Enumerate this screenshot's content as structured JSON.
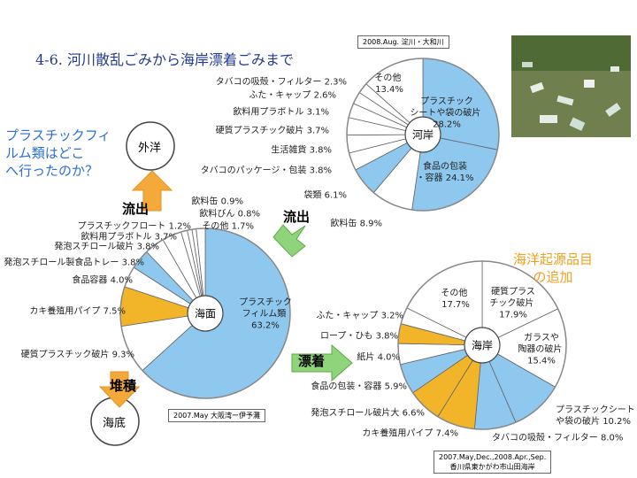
{
  "title": "4-6. 河川散乱ごみから海岸漂着ごみまで",
  "question": "プラスチックフィ\nルム類はどこ\nへ行ったのか？",
  "note": "海洋起源品目\nの追加",
  "nodes": {
    "ocean": "外洋",
    "seabed": "海底"
  },
  "arrows": [
    "流出",
    "流出",
    "堆積",
    "漂着"
  ],
  "chart_data": [
    {
      "type": "pie",
      "center_label": "河岸",
      "source": "2008.Aug. 淀川・大和川",
      "categories": [
        "プラスチック\nシートや袋の破片",
        "食品の包装\n・容器",
        "飲料缶",
        "袋類",
        "タバコのパッケージ・包装",
        "生活雑貨",
        "硬質プラスチック破片",
        "飲料用プラボトル",
        "ふた・キャップ",
        "タバコの吸殻・フィルター",
        "その他"
      ],
      "values": [
        28.2,
        24.1,
        8.9,
        6.1,
        3.8,
        3.8,
        3.7,
        3.1,
        2.6,
        2.3,
        13.4
      ],
      "value_labels": [
        "28.2%",
        "24.1%",
        "8.9%",
        "6.1%",
        "3.8%",
        "3.8%",
        "3.7%",
        "3.1%",
        "2.6%",
        "2.3%",
        "13.4%"
      ],
      "colors": [
        "#8ec8ee",
        "#8ec8ee",
        "#ffffff",
        "#8ec8ee",
        "#ffffff",
        "#ffffff",
        "#ffffff",
        "#ffffff",
        "#ffffff",
        "#ffffff",
        "#ffffff"
      ]
    },
    {
      "type": "pie",
      "center_label": "海面",
      "source": "2007.May 大阪湾ー伊予灘",
      "categories": [
        "プラスチック\nフィルム類",
        "硬質プラスチック破片",
        "カキ養殖用パイプ",
        "食品容器",
        "発泡スチロール製食品トレー",
        "発泡スチロール破片",
        "飲料用プラボトル",
        "プラスチックフロート",
        "飲料缶",
        "飲料びん",
        "その他"
      ],
      "values": [
        63.2,
        9.3,
        7.5,
        4.0,
        3.8,
        3.8,
        3.7,
        1.2,
        0.9,
        0.8,
        1.7
      ],
      "value_labels": [
        "63.2%",
        "9.3%",
        "7.5%",
        "4.0%",
        "3.8%",
        "3.8%",
        "3.7%",
        "1.2%",
        "0.9%",
        "0.8%",
        "1.7%"
      ],
      "colors": [
        "#8ec8ee",
        "#ffffff",
        "#f2b52a",
        "#ffffff",
        "#8ec8ee",
        "#ffffff",
        "#ffffff",
        "#ffffff",
        "#ffffff",
        "#ffffff",
        "#ffffff"
      ]
    },
    {
      "type": "pie",
      "center_label": "海岸",
      "source": "2007.May,Dec.,2008.Apr.,Sep.\n香川県東かがわ市山田海岸",
      "categories": [
        "硬質プラス\nチック破片",
        "ガラスや\n陶器の破片",
        "プラスチックシート\nや袋の破片",
        "タバコの吸殻・フィルター",
        "カキ養殖用パイプ",
        "発泡スチロール破片大",
        "食品の包装・容器",
        "紙片",
        "ロープ・ひも",
        "ふた・キャップ",
        "その他"
      ],
      "values": [
        17.9,
        15.4,
        10.2,
        8.0,
        7.4,
        6.6,
        5.9,
        4.0,
        3.8,
        3.2,
        17.7
      ],
      "value_labels": [
        "17.9%",
        "15.4%",
        "10.2%",
        "8.0%",
        "7.4%",
        "6.6%",
        "5.9%",
        "4.0%",
        "3.8%",
        "3.2%",
        "17.7%"
      ],
      "colors": [
        "#ffffff",
        "#ffffff",
        "#8ec8ee",
        "#8ec8ee",
        "#f2b52a",
        "#f2b52a",
        "#8ec8ee",
        "#ffffff",
        "#f2b52a",
        "#ffffff",
        "#ffffff"
      ]
    }
  ]
}
